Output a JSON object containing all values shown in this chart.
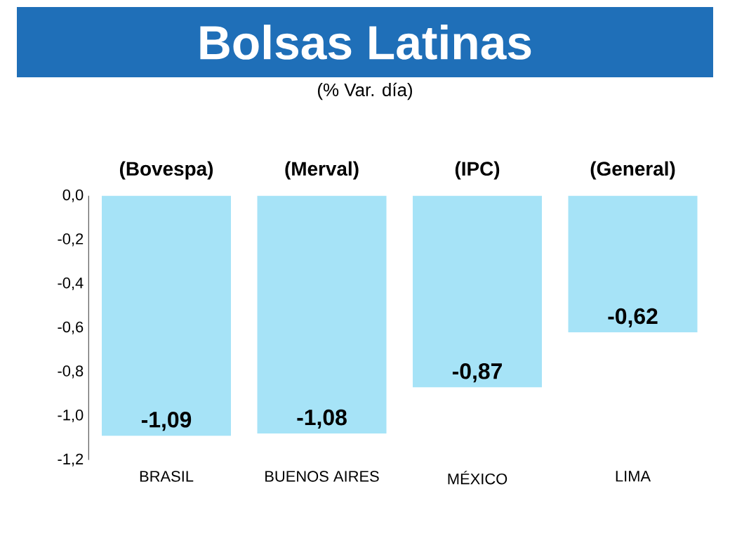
{
  "chart_data": {
    "type": "bar",
    "title": "Bolsas Latinas",
    "subtitle": "(% Var. día)",
    "categories": [
      "BRASIL",
      "BUENOS AIRES",
      "MÉXICO",
      "LIMA"
    ],
    "values": [
      -1.09,
      -1.08,
      -0.87,
      -0.62
    ],
    "value_labels": [
      "-1,09",
      "-1,08",
      "-0,87",
      "-0,62"
    ],
    "color": "#a6e3f7",
    "ylim": [
      -1.2,
      0
    ],
    "yticks": [
      {
        "value": 0,
        "label": "0,0"
      },
      {
        "value": -0.2,
        "label": "-0,2"
      },
      {
        "value": -0.4,
        "label": "-0,4"
      },
      {
        "value": -0.6,
        "label": "-0,6"
      },
      {
        "value": -0.8,
        "label": "-0,8"
      },
      {
        "value": -1.0,
        "label": "-1,0"
      },
      {
        "value": -1.2,
        "label": "-1,2"
      }
    ],
    "annotations": [
      "(Bovespa)",
      "(Merval)",
      "(IPC)",
      "(General)"
    ],
    "grid": false
  }
}
